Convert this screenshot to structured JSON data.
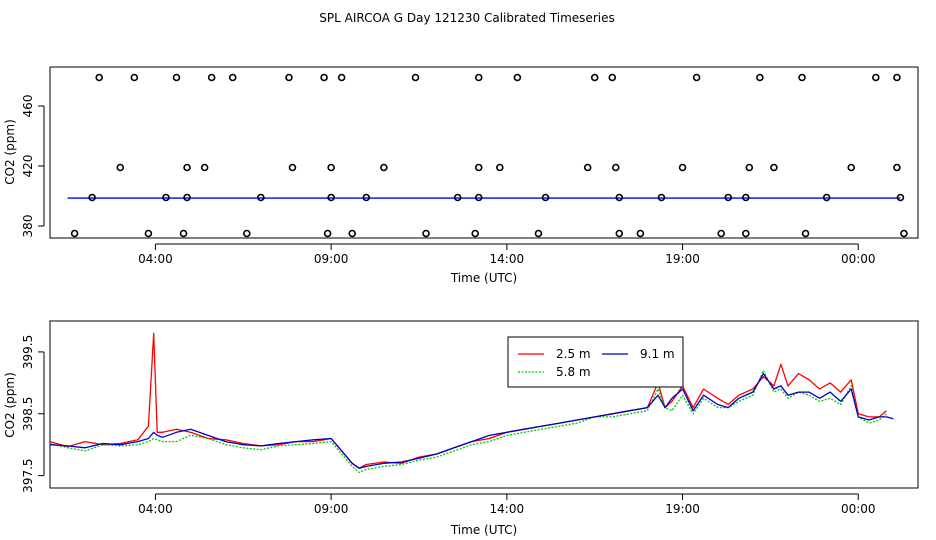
{
  "figure_title": "SPL AIRCOA G  Day 121230  Calibrated Timeseries",
  "chart_data": [
    {
      "type": "scatter",
      "id": "top",
      "xlabel": "Time (UTC)",
      "ylabel": "CO2 (ppm)",
      "xlim": [
        0,
        24.7
      ],
      "ylim": [
        372,
        486
      ],
      "x_ticks": [
        3,
        8,
        13,
        18,
        23
      ],
      "x_tick_labels": [
        "04:00",
        "09:00",
        "14:00",
        "19:00",
        "00:00"
      ],
      "y_ticks": [
        380,
        420,
        460
      ],
      "y_tick_labels": [
        "380",
        "420",
        "460"
      ],
      "points": {
        "x": [
          1.4,
          2.4,
          3.6,
          4.6,
          5.2,
          6.8,
          7.8,
          8.3,
          10.4,
          12.2,
          13.3,
          15.5,
          16.0,
          18.4,
          20.2,
          21.4,
          23.5,
          24.1,
          2.0,
          3.9,
          4.4,
          6.9,
          8.0,
          9.5,
          12.2,
          12.8,
          15.3,
          16.1,
          18.0,
          19.9,
          20.6,
          22.8,
          24.1,
          0.7,
          2.8,
          3.8,
          5.6,
          7.9,
          8.6,
          10.7,
          12.1,
          13.9,
          16.2,
          16.8,
          19.1,
          19.8,
          21.5,
          24.3,
          1.2,
          3.3,
          3.9,
          6.0,
          8.0,
          9.0,
          11.6,
          12.2,
          14.1,
          16.2,
          17.4,
          19.3,
          19.8,
          22.1,
          24.2
        ],
        "y": [
          479,
          479,
          479,
          479,
          479,
          479,
          479,
          479,
          479,
          479,
          479,
          479,
          479,
          479,
          479,
          479,
          479,
          479,
          419,
          419,
          419,
          419,
          419,
          419,
          419,
          419,
          419,
          419,
          419,
          419,
          419,
          419,
          419,
          375,
          375,
          375,
          375,
          375,
          375,
          375,
          375,
          375,
          375,
          375,
          375,
          375,
          375,
          375,
          399,
          399,
          399,
          399,
          399,
          399,
          399,
          399,
          399,
          399,
          399,
          399,
          399,
          399,
          399
        ]
      },
      "baseline": {
        "y": 398.6,
        "color": "#0000ff"
      }
    },
    {
      "type": "line",
      "id": "bottom",
      "xlabel": "Time (UTC)",
      "ylabel": "CO2 (ppm)",
      "xlim": [
        0,
        24.7
      ],
      "ylim": [
        397.3,
        400.0
      ],
      "x_ticks": [
        3,
        8,
        13,
        18,
        23
      ],
      "x_tick_labels": [
        "04:00",
        "09:00",
        "14:00",
        "19:00",
        "00:00"
      ],
      "y_ticks": [
        397.5,
        398.5,
        399.5
      ],
      "y_tick_labels": [
        "397.5",
        "398.5",
        "399.5"
      ],
      "legend": {
        "position": "top-center",
        "entries": [
          "2.5 m",
          "9.1 m",
          "5.8 m"
        ]
      },
      "series": [
        {
          "name": "2.5 m",
          "color": "#ff0000",
          "dash": "none",
          "x": [
            0,
            0.5,
            1.0,
            1.5,
            2.0,
            2.5,
            2.8,
            2.95,
            3.05,
            3.2,
            3.6,
            4.0,
            4.5,
            5.0,
            5.5,
            6.0,
            6.5,
            7.0,
            7.5,
            8.0,
            8.3,
            8.6,
            8.8,
            9.0,
            9.5,
            10.0,
            10.5,
            11.0,
            11.5,
            12.0,
            12.5,
            13.0,
            13.5,
            14.0,
            14.5,
            15.0,
            15.5,
            16.0,
            16.5,
            17.0,
            17.3,
            17.5,
            17.7,
            18.0,
            18.3,
            18.6,
            19.0,
            19.3,
            19.6,
            20.0,
            20.3,
            20.6,
            20.8,
            21.0,
            21.3,
            21.6,
            21.9,
            22.2,
            22.5,
            22.8,
            23.0,
            23.3,
            23.6,
            23.8
          ],
          "y": [
            398.05,
            397.97,
            398.05,
            398.0,
            398.02,
            398.08,
            398.3,
            399.8,
            398.2,
            398.2,
            398.25,
            398.2,
            398.1,
            398.08,
            398.02,
            397.98,
            398.0,
            398.05,
            398.05,
            398.1,
            397.9,
            397.7,
            397.62,
            397.68,
            397.72,
            397.7,
            397.8,
            397.85,
            397.95,
            398.05,
            398.1,
            398.2,
            398.25,
            398.3,
            398.35,
            398.4,
            398.45,
            398.5,
            398.55,
            398.6,
            399.0,
            398.6,
            398.7,
            398.95,
            398.6,
            398.9,
            398.75,
            398.65,
            398.8,
            398.9,
            399.1,
            398.95,
            399.3,
            398.95,
            399.15,
            399.05,
            398.9,
            399.0,
            398.85,
            399.05,
            398.5,
            398.45,
            398.45,
            398.55
          ]
        },
        {
          "name": "5.8 m",
          "color": "#00c800",
          "dash": "2,1.5",
          "x": [
            0,
            0.5,
            1.0,
            1.5,
            2.0,
            2.5,
            2.8,
            2.95,
            3.05,
            3.2,
            3.6,
            4.0,
            4.5,
            5.0,
            5.5,
            6.0,
            6.5,
            7.0,
            7.5,
            8.0,
            8.3,
            8.6,
            8.8,
            9.0,
            9.5,
            10.0,
            10.5,
            11.0,
            11.5,
            12.0,
            12.5,
            13.0,
            13.5,
            14.0,
            14.5,
            15.0,
            15.5,
            16.0,
            16.5,
            17.0,
            17.3,
            17.5,
            17.7,
            18.0,
            18.3,
            18.6,
            19.0,
            19.3,
            19.6,
            20.0,
            20.3,
            20.6,
            20.8,
            21.0,
            21.3,
            21.6,
            21.9,
            22.2,
            22.5,
            22.8,
            23.0,
            23.3,
            23.6,
            23.8
          ],
          "y": [
            398.02,
            397.95,
            397.9,
            398.0,
            397.98,
            398.0,
            398.05,
            398.1,
            398.08,
            398.05,
            398.05,
            398.15,
            398.1,
            398.0,
            397.95,
            397.92,
            397.98,
            398.0,
            398.02,
            398.05,
            397.85,
            397.65,
            397.55,
            397.6,
            397.65,
            397.68,
            397.75,
            397.8,
            397.9,
            398.0,
            398.05,
            398.15,
            398.2,
            398.25,
            398.3,
            398.35,
            398.45,
            398.45,
            398.5,
            398.55,
            398.9,
            398.6,
            398.55,
            398.8,
            398.5,
            398.75,
            398.6,
            398.6,
            398.7,
            398.8,
            399.2,
            398.85,
            398.9,
            398.75,
            398.85,
            398.8,
            398.7,
            398.75,
            398.65,
            398.95,
            398.45,
            398.35,
            398.4,
            398.5
          ]
        },
        {
          "name": "9.1 m",
          "color": "#0000c8",
          "dash": "none",
          "x": [
            0,
            0.5,
            1.0,
            1.5,
            2.0,
            2.5,
            2.8,
            2.95,
            3.05,
            3.2,
            3.6,
            4.0,
            4.5,
            5.0,
            5.5,
            6.0,
            6.5,
            7.0,
            7.5,
            8.0,
            8.3,
            8.6,
            8.8,
            9.0,
            9.5,
            10.0,
            10.5,
            11.0,
            11.5,
            12.0,
            12.5,
            13.0,
            13.5,
            14.0,
            14.5,
            15.0,
            15.5,
            16.0,
            16.5,
            17.0,
            17.3,
            17.5,
            17.7,
            18.0,
            18.3,
            18.6,
            19.0,
            19.3,
            19.6,
            20.0,
            20.3,
            20.6,
            20.8,
            21.0,
            21.3,
            21.6,
            21.9,
            22.2,
            22.5,
            22.8,
            23.0,
            23.3,
            23.6,
            23.8,
            24.0
          ],
          "y": [
            398.0,
            397.98,
            397.95,
            398.02,
            398.0,
            398.05,
            398.1,
            398.2,
            398.15,
            398.12,
            398.2,
            398.25,
            398.15,
            398.05,
            398.0,
            397.98,
            398.02,
            398.05,
            398.08,
            398.1,
            397.9,
            397.7,
            397.62,
            397.65,
            397.7,
            397.72,
            397.78,
            397.85,
            397.95,
            398.05,
            398.15,
            398.2,
            398.25,
            398.3,
            398.35,
            398.4,
            398.45,
            398.5,
            398.55,
            398.6,
            398.8,
            398.6,
            398.75,
            398.9,
            398.55,
            398.8,
            398.65,
            398.6,
            398.75,
            398.85,
            399.15,
            398.9,
            398.95,
            398.8,
            398.85,
            398.85,
            398.75,
            398.85,
            398.7,
            398.9,
            398.45,
            398.4,
            398.45,
            398.45,
            398.42
          ]
        }
      ]
    }
  ]
}
